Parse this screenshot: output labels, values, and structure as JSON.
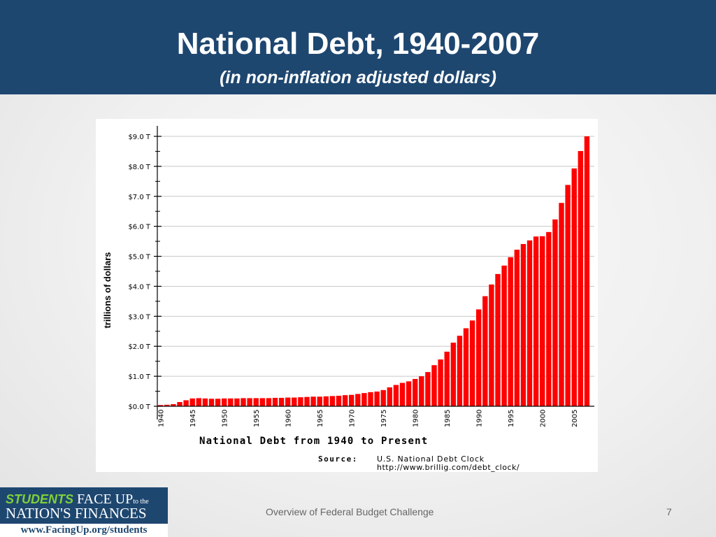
{
  "slide": {
    "title": "National Debt, 1940-2007",
    "subtitle": "(in non-inflation adjusted dollars)",
    "footer": "Overview of Federal Budget Challenge",
    "page_number": "7"
  },
  "logo": {
    "students": "STUDENTS",
    "face_up": "FACE UP",
    "to_the": "to the",
    "nations_finances": "NATION'S FINANCES",
    "url": "www.FacingUp.org/students"
  },
  "colors": {
    "header_bg": "#1e4770",
    "bar_fill": "#ff0000",
    "logo_accent": "#7fd03a"
  },
  "chart_data": {
    "type": "bar",
    "title": "National Debt from 1940 to Present",
    "ylabel": "trillions of dollars",
    "xlabel": "",
    "ylim": [
      0,
      9
    ],
    "grid": true,
    "y_ticks": [
      "$0.0 T",
      "$1.0 T",
      "$2.0 T",
      "$3.0 T",
      "$4.0 T",
      "$5.0 T",
      "$6.0 T",
      "$7.0 T",
      "$8.0 T",
      "$9.0 T"
    ],
    "x_tick_labels": [
      "1940",
      "1945",
      "1950",
      "1955",
      "1960",
      "1965",
      "1970",
      "1975",
      "1980",
      "1985",
      "1990",
      "1995",
      "2000",
      "2005"
    ],
    "categories": [
      1940,
      1941,
      1942,
      1943,
      1944,
      1945,
      1946,
      1947,
      1948,
      1949,
      1950,
      1951,
      1952,
      1953,
      1954,
      1955,
      1956,
      1957,
      1958,
      1959,
      1960,
      1961,
      1962,
      1963,
      1964,
      1965,
      1966,
      1967,
      1968,
      1969,
      1970,
      1971,
      1972,
      1973,
      1974,
      1975,
      1976,
      1977,
      1978,
      1979,
      1980,
      1981,
      1982,
      1983,
      1984,
      1985,
      1986,
      1987,
      1988,
      1989,
      1990,
      1991,
      1992,
      1993,
      1994,
      1995,
      1996,
      1997,
      1998,
      1999,
      2000,
      2001,
      2002,
      2003,
      2004,
      2005,
      2006,
      2007
    ],
    "values": [
      0.04,
      0.05,
      0.07,
      0.14,
      0.2,
      0.26,
      0.27,
      0.26,
      0.25,
      0.25,
      0.26,
      0.26,
      0.26,
      0.27,
      0.27,
      0.27,
      0.27,
      0.27,
      0.28,
      0.28,
      0.29,
      0.29,
      0.3,
      0.31,
      0.32,
      0.32,
      0.33,
      0.34,
      0.35,
      0.37,
      0.38,
      0.41,
      0.44,
      0.47,
      0.49,
      0.54,
      0.63,
      0.71,
      0.78,
      0.83,
      0.91,
      1.0,
      1.14,
      1.37,
      1.56,
      1.82,
      2.12,
      2.35,
      2.6,
      2.86,
      3.23,
      3.67,
      4.06,
      4.41,
      4.69,
      4.97,
      5.22,
      5.41,
      5.53,
      5.66,
      5.67,
      5.81,
      6.23,
      6.78,
      7.38,
      7.93,
      8.51,
      9.0
    ],
    "source_label": "Source:",
    "source_name": "U.S. National Debt Clock",
    "source_url": "http://www.brillig.com/debt_clock/"
  }
}
